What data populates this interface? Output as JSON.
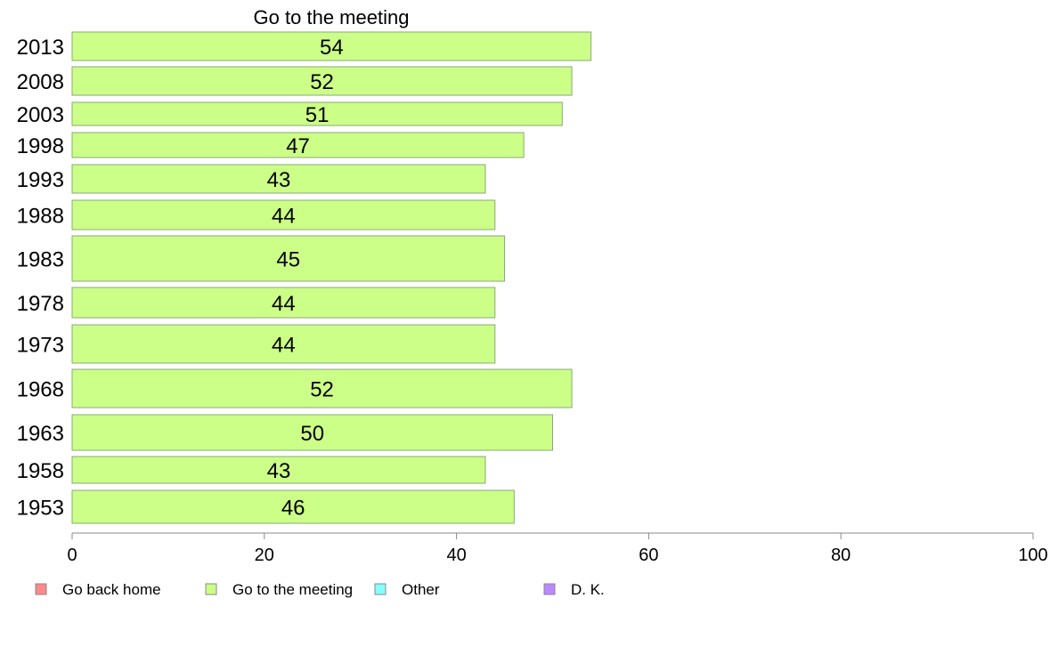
{
  "chart_data": {
    "type": "bar",
    "orientation": "horizontal",
    "title": "Go to the meeting",
    "categories": [
      "2013",
      "2008",
      "2003",
      "1998",
      "1993",
      "1988",
      "1983",
      "1978",
      "1973",
      "1968",
      "1963",
      "1958",
      "1953"
    ],
    "values": [
      54,
      52,
      51,
      47,
      43,
      44,
      45,
      44,
      44,
      52,
      50,
      43,
      46
    ],
    "series_color": "#ccff88",
    "xlim": [
      0,
      100
    ],
    "xticks": [
      0,
      20,
      40,
      60,
      80,
      100
    ],
    "xtick_labels": [
      "0",
      "20",
      "40",
      "60",
      "80",
      "100"
    ],
    "grid": false,
    "legend_position": "bottom-left",
    "legend": [
      {
        "label": "Go back home",
        "color": "#ff8a8a"
      },
      {
        "label": "Go to the meeting",
        "color": "#ccff88"
      },
      {
        "label": "Other",
        "color": "#88ffff"
      },
      {
        "label": "D. K.",
        "color": "#bb88ff"
      }
    ]
  }
}
